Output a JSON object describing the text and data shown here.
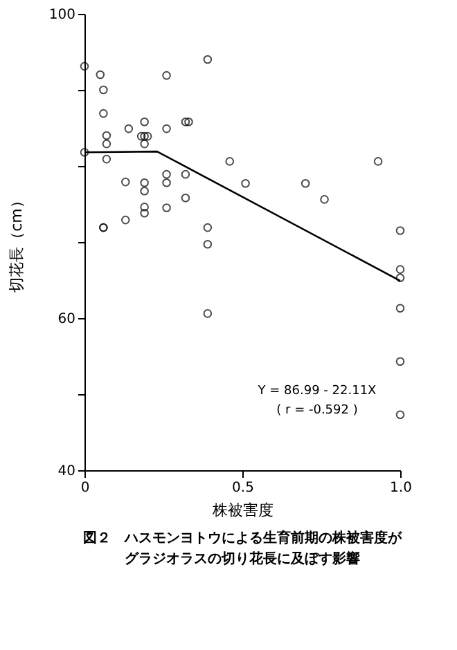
{
  "chart_data": {
    "type": "scatter",
    "title": "図２　ハスモンヨトウによる生育前期の株被害度がグラジオラスの切り花長に及ぼす影響",
    "xlabel": "株被害度",
    "ylabel": "切花長（cm）",
    "annotations": [
      "Y = 86.99 - 22.11X",
      "( r = -0.592 )"
    ],
    "xlim": [
      0,
      1.0
    ],
    "xticks": [
      0,
      {
        "value": 0.5,
        "label": "0.5"
      },
      {
        "value": 1.0,
        "label": "1.0"
      }
    ],
    "ylim": [
      40,
      100
    ],
    "yticks": [
      40,
      {
        "value": 50,
        "label": null
      },
      60,
      {
        "value": 70,
        "label": null
      },
      {
        "value": 80,
        "label": null
      },
      {
        "value": 90,
        "label": null
      },
      100
    ],
    "grid": false,
    "marker": "circle",
    "series": [
      {
        "color": "#000000",
        "x": [
          0,
          0.05,
          0.26,
          0.39,
          0.06,
          0.06,
          0.19,
          0.14,
          0.26,
          0.32,
          0.33,
          0.07,
          0.18,
          0.19,
          0.2,
          0.07,
          0.19,
          0,
          0.07,
          0.46,
          0.13,
          0.19,
          0.26,
          0.26,
          0.32,
          0.51,
          0.19,
          0.32,
          0.19,
          0.19,
          0.26,
          0.13,
          0.06,
          0.06,
          0.39,
          0.7,
          0.76,
          0.93,
          0.39,
          1.0,
          1.0,
          1.0,
          1.0,
          0.39,
          1.0,
          1.0
        ],
        "values": [
          93.1,
          92.0,
          91.9,
          94.0,
          90.0,
          86.9,
          85.8,
          84.9,
          84.9,
          85.8,
          85.8,
          84.0,
          83.9,
          83.9,
          83.9,
          82.9,
          82.9,
          81.8,
          80.9,
          80.6,
          77.9,
          77.8,
          78.9,
          77.8,
          78.9,
          77.7,
          76.7,
          75.8,
          74.6,
          73.8,
          74.5,
          72.9,
          71.9,
          71.9,
          71.9,
          77.7,
          75.6,
          80.6,
          69.7,
          71.5,
          66.4,
          65.3,
          61.3,
          60.6,
          54.3,
          47.3
        ]
      },
      {
        "type": "line",
        "color": "#000000",
        "line_style": "solid",
        "marker": "none",
        "x": [
          0,
          0.23,
          1.0
        ],
        "values": [
          81.8,
          81.9,
          64.9
        ]
      }
    ]
  }
}
